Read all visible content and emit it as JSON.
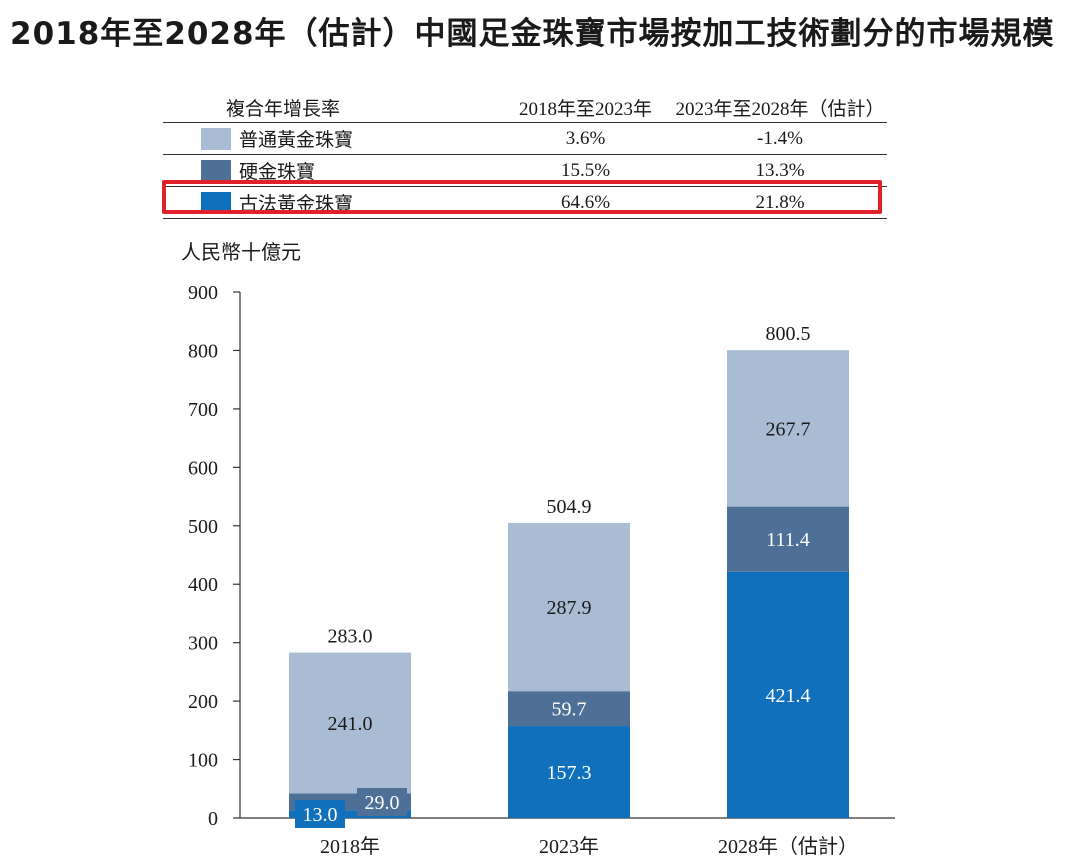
{
  "title": "2018年至2028年（估計）中國足金珠寶市場按加工技術劃分的市場規模",
  "cagr_table": {
    "header": {
      "label": "複合年增長率",
      "period1": "2018年至2023年",
      "period2": "2023年至2028年（估計）"
    },
    "rows": [
      {
        "name": "普通黃金珠寶",
        "period1": "3.6%",
        "period2": "-1.4%",
        "color": "#a9bcd4"
      },
      {
        "name": "硬金珠寶",
        "period1": "15.5%",
        "period2": "13.3%",
        "color": "#4f7096"
      },
      {
        "name": "古法黃金珠寶",
        "period1": "64.6%",
        "period2": "21.8%",
        "color": "#1070bb"
      }
    ],
    "highlighted_row": "古法黃金珠寶",
    "highlight_color": "#e0202a"
  },
  "chart_data": {
    "type": "bar",
    "stacked": true,
    "unit_label": "人民幣十億元",
    "categories": [
      "2018年",
      "2023年",
      "2028年（估計）"
    ],
    "series": [
      {
        "name": "古法黃金珠寶",
        "values": [
          13.0,
          157.3,
          421.4
        ],
        "labels": [
          "13.0",
          "157.3",
          "421.4"
        ],
        "color": "#1070bb"
      },
      {
        "name": "硬金珠寶",
        "values": [
          29.0,
          59.7,
          111.4
        ],
        "labels": [
          "29.0",
          "59.7",
          "111.4"
        ],
        "color": "#4f7096"
      },
      {
        "name": "普通黃金珠寶",
        "values": [
          241.0,
          287.9,
          267.7
        ],
        "labels": [
          "241.0",
          "287.9",
          "267.7"
        ],
        "color": "#a9bcd4"
      }
    ],
    "totals": [
      283.0,
      504.9,
      800.5
    ],
    "total_labels": [
      "283.0",
      "504.9",
      "800.5"
    ],
    "ylim": [
      0,
      900
    ],
    "yticks": [
      0,
      100,
      200,
      300,
      400,
      500,
      600,
      700,
      800,
      900
    ],
    "grid": false
  }
}
